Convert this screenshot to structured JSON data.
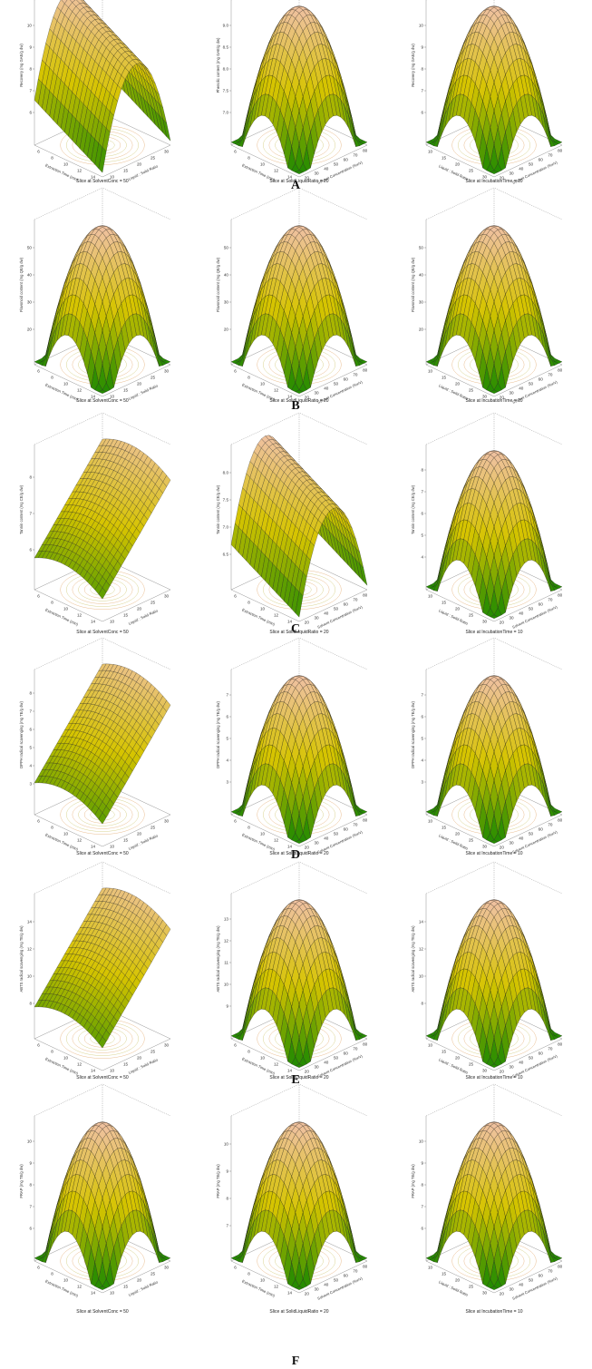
{
  "figure": {
    "rows": [
      {
        "letter": "A",
        "panels": [
          {
            "zlabel": "Recovery (mg GAE/g dw)",
            "xlabel": "Extraction Time (min)",
            "ylabel": "Liquid : Solid Ratio",
            "xticks": [
              "6",
              "8",
              "10",
              "12",
              "14"
            ],
            "yticks": [
              "10",
              "15",
              "20",
              "25",
              "30"
            ],
            "zticks": [
              "6",
              "7",
              "8",
              "9",
              "10"
            ],
            "caption": "Slice at SolventConc = 50"
          },
          {
            "zlabel": "Phenolic content (mg GAE/g dw)",
            "xlabel": "Extraction Time (min)",
            "ylabel": "Solvent Concentration (%v/v)",
            "xticks": [
              "6",
              "8",
              "10",
              "12",
              "14"
            ],
            "yticks": [
              "20",
              "30",
              "40",
              "50",
              "60",
              "70",
              "80"
            ],
            "zticks": [
              "7.0",
              "7.5",
              "8.0",
              "8.5",
              "9.0"
            ],
            "caption": "Slice at SolidLiquidRatio = 20"
          },
          {
            "zlabel": "Recovery (mg GAE/g dw)",
            "xlabel": "Liquid : Solid Ratio",
            "ylabel": "Solvent Concentration (%v/v)",
            "xticks": [
              "10",
              "15",
              "20",
              "25",
              "30"
            ],
            "yticks": [
              "20",
              "30",
              "40",
              "50",
              "60",
              "70",
              "80"
            ],
            "zticks": [
              "6",
              "7",
              "8",
              "9",
              "10"
            ],
            "caption": "Slice at IncubationTime = 10"
          }
        ]
      },
      {
        "letter": "B",
        "panels": [
          {
            "zlabel": "Flavonoid content (mg QE/g dw)",
            "xlabel": "Extraction Time (min)",
            "ylabel": "Liquid : Solid Ratio",
            "xticks": [
              "6",
              "8",
              "10",
              "12",
              "14"
            ],
            "yticks": [
              "10",
              "15",
              "20",
              "25",
              "30"
            ],
            "zticks": [
              "20",
              "30",
              "40",
              "50"
            ],
            "caption": "Slice at SolventConc = 50"
          },
          {
            "zlabel": "Flavonoid content (mg QE/g dw)",
            "xlabel": "Extraction Time (min)",
            "ylabel": "Solvent Concentration (%v/v)",
            "xticks": [
              "6",
              "8",
              "10",
              "12",
              "14"
            ],
            "yticks": [
              "20",
              "30",
              "40",
              "50",
              "60",
              "70",
              "80"
            ],
            "zticks": [
              "20",
              "30",
              "40",
              "50"
            ],
            "caption": "Slice at SolidLiquidRatio = 20"
          },
          {
            "zlabel": "Flavonoid content (mg QE/g dw)",
            "xlabel": "Liquid : Solid Ratio",
            "ylabel": "Solvent Concentration (%v/v)",
            "xticks": [
              "10",
              "15",
              "20",
              "25",
              "30"
            ],
            "yticks": [
              "20",
              "30",
              "40",
              "50",
              "60",
              "70",
              "80"
            ],
            "zticks": [
              "20",
              "30",
              "40",
              "50"
            ],
            "caption": "Slice at IncubationTime = 10"
          }
        ]
      },
      {
        "letter": "C",
        "panels": [
          {
            "zlabel": "Tannin content (mg CE/g dw)",
            "xlabel": "Extraction Time (min)",
            "ylabel": "Liquid : Solid Ratio",
            "xticks": [
              "6",
              "8",
              "10",
              "12",
              "14"
            ],
            "yticks": [
              "10",
              "15",
              "20",
              "25",
              "30"
            ],
            "zticks": [
              "6",
              "7",
              "8"
            ],
            "caption": "Slice at SolventConc = 50"
          },
          {
            "zlabel": "Tannin content (mg CE/g dw)",
            "xlabel": "Extraction Time (min)",
            "ylabel": "Solvent Concentration (%v/v)",
            "xticks": [
              "6",
              "8",
              "10",
              "12",
              "14"
            ],
            "yticks": [
              "20",
              "30",
              "40",
              "50",
              "60",
              "70",
              "80"
            ],
            "zticks": [
              "6.5",
              "7.0",
              "7.5",
              "8.0"
            ],
            "caption": "Slice at SolidLiquidRatio = 20"
          },
          {
            "zlabel": "Tannin content (mg CE/g dw)",
            "xlabel": "Liquid : Solid Ratio",
            "ylabel": "Solvent Concentration (%v/v)",
            "xticks": [
              "10",
              "15",
              "20",
              "25",
              "30"
            ],
            "yticks": [
              "20",
              "30",
              "40",
              "50",
              "60",
              "70",
              "80"
            ],
            "zticks": [
              "4",
              "5",
              "6",
              "7",
              "8"
            ],
            "caption": "Slice at IncubationTime = 10"
          }
        ]
      },
      {
        "letter": "D",
        "panels": [
          {
            "zlabel": "DPPH radical scavenging (mg TE/g dw)",
            "xlabel": "Extraction Time (min)",
            "ylabel": "Liquid : Solid Ratio",
            "xticks": [
              "6",
              "8",
              "10",
              "12",
              "14"
            ],
            "yticks": [
              "10",
              "15",
              "20",
              "25",
              "30"
            ],
            "zticks": [
              "3",
              "4",
              "5",
              "6",
              "7",
              "8"
            ],
            "caption": "Slice at SolventConc = 50"
          },
          {
            "zlabel": "DPPH radical scavenging (mg TE/g dw)",
            "xlabel": "Extraction Time (min)",
            "ylabel": "Solvent Concentration (%v/v)",
            "xticks": [
              "6",
              "8",
              "10",
              "12",
              "14"
            ],
            "yticks": [
              "20",
              "30",
              "40",
              "50",
              "60",
              "70",
              "80"
            ],
            "zticks": [
              "3",
              "4",
              "5",
              "6",
              "7"
            ],
            "caption": "Slice at SolidLiquidRatio = 20"
          },
          {
            "zlabel": "DPPH radical scavenging (mg TE/g dw)",
            "xlabel": "Liquid : Solid Ratio",
            "ylabel": "Solvent Concentration (%v/v)",
            "xticks": [
              "10",
              "15",
              "20",
              "25",
              "30"
            ],
            "yticks": [
              "20",
              "30",
              "40",
              "50",
              "60",
              "70",
              "80"
            ],
            "zticks": [
              "3",
              "4",
              "5",
              "6",
              "7"
            ],
            "caption": "Slice at IncubationTime = 10"
          }
        ]
      },
      {
        "letter": "E",
        "panels": [
          {
            "zlabel": "ABTS radical scavenging (mg TE/g dw)",
            "xlabel": "Extraction Time (min)",
            "ylabel": "Liquid : Solid Ratio",
            "xticks": [
              "6",
              "8",
              "10",
              "12",
              "14"
            ],
            "yticks": [
              "10",
              "15",
              "20",
              "25",
              "30"
            ],
            "zticks": [
              "8",
              "10",
              "12",
              "14"
            ],
            "caption": "Slice at SolventConc = 50"
          },
          {
            "zlabel": "ABTS radical scavenging (mg TE/g dw)",
            "xlabel": "Extraction Time (min)",
            "ylabel": "Solvent Concentration (%v/v)",
            "xticks": [
              "6",
              "8",
              "10",
              "12",
              "14"
            ],
            "yticks": [
              "20",
              "30",
              "40",
              "50",
              "60",
              "70",
              "80"
            ],
            "zticks": [
              "9",
              "10",
              "11",
              "12",
              "13"
            ],
            "caption": "Slice at SolidLiquidRatio = 20"
          },
          {
            "zlabel": "ABTS radical scavenging (mg TE/g dw)",
            "xlabel": "Liquid : Solid Ratio",
            "ylabel": "Solvent Concentration (%v/v)",
            "xticks": [
              "10",
              "15",
              "20",
              "25",
              "30"
            ],
            "yticks": [
              "20",
              "30",
              "40",
              "50",
              "60",
              "70",
              "80"
            ],
            "zticks": [
              "8",
              "10",
              "12",
              "14"
            ],
            "caption": "Slice at IncubationTime = 10"
          }
        ]
      },
      {
        "letter": "F",
        "panels": [
          {
            "zlabel": "FRAP (mg TE/g dw)",
            "xlabel": "Extraction Time (min)",
            "ylabel": "Liquid : Solid Ratio",
            "xticks": [
              "6",
              "8",
              "10",
              "12",
              "14"
            ],
            "yticks": [
              "10",
              "15",
              "20",
              "25",
              "30"
            ],
            "zticks": [
              "6",
              "7",
              "8",
              "9",
              "10"
            ],
            "caption": "Slice at SolventConc = 50"
          },
          {
            "zlabel": "FRAP (mg TE/g dw)",
            "xlabel": "Extraction Time (min)",
            "ylabel": "Solvent Concentration (%v/v)",
            "xticks": [
              "6",
              "8",
              "10",
              "12",
              "14"
            ],
            "yticks": [
              "20",
              "30",
              "40",
              "50",
              "60",
              "70",
              "80"
            ],
            "zticks": [
              "7",
              "8",
              "9",
              "10"
            ],
            "caption": "Slice at SolidLiquidRatio = 20"
          },
          {
            "zlabel": "FRAP (mg TE/g dw)",
            "xlabel": "Liquid : Solid Ratio",
            "ylabel": "Solvent Concentration (%v/v)",
            "xticks": [
              "10",
              "15",
              "20",
              "25",
              "30"
            ],
            "yticks": [
              "20",
              "30",
              "40",
              "50",
              "60",
              "70",
              "80"
            ],
            "zticks": [
              "6",
              "7",
              "8",
              "9",
              "10"
            ],
            "caption": "Slice at IncubationTime = 10"
          }
        ]
      }
    ]
  },
  "colors": {
    "low": "#1f8a00",
    "mid": "#d6c400",
    "high": "#f2c1b0",
    "mesh": "#1a1a1a",
    "contour": "#e0a060"
  },
  "chart_data": {
    "type": "surface",
    "title": "",
    "surface_shapes": {
      "A": [
        "ridge",
        "dome",
        "dome"
      ],
      "B": [
        "dome",
        "dome",
        "dome"
      ],
      "C": [
        "slope",
        "ridge",
        "dome"
      ],
      "D": [
        "slope",
        "dome",
        "dome"
      ],
      "E": [
        "slope",
        "dome",
        "dome"
      ],
      "F": [
        "dome",
        "dome",
        "dome"
      ]
    }
  }
}
